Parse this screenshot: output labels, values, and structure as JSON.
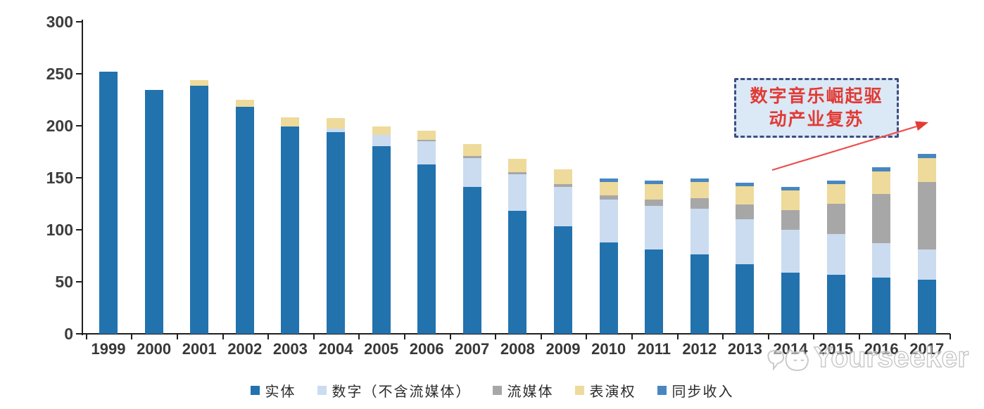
{
  "chart_data": {
    "type": "bar",
    "stacked": true,
    "grid": false,
    "legend_position": "bottom",
    "ylim": [
      0,
      300
    ],
    "y_ticks": [
      0,
      50,
      100,
      150,
      200,
      250,
      300
    ],
    "categories": [
      "1999",
      "2000",
      "2001",
      "2002",
      "2003",
      "2004",
      "2005",
      "2006",
      "2007",
      "2008",
      "2009",
      "2010",
      "2011",
      "2012",
      "2013",
      "2014",
      "2015",
      "2016",
      "2017"
    ],
    "series": [
      {
        "name": "实体",
        "color": "#2272ae",
        "values": [
          252,
          234,
          238,
          218,
          199,
          194,
          180,
          163,
          141,
          118,
          103,
          88,
          81,
          76,
          67,
          59,
          57,
          54,
          52
        ]
      },
      {
        "name": "数字（不含流媒体）",
        "color": "#cbdcf0",
        "values": [
          0,
          0,
          0,
          0,
          0,
          3,
          11,
          22,
          28,
          35,
          38,
          41,
          42,
          44,
          43,
          41,
          39,
          33,
          29
        ]
      },
      {
        "name": "流媒体",
        "color": "#a7a7a7",
        "values": [
          0,
          0,
          0,
          0,
          0,
          0,
          0,
          1,
          2,
          2,
          3,
          4,
          6,
          10,
          14,
          19,
          29,
          47,
          65
        ]
      },
      {
        "name": "表演权",
        "color": "#eeda9b",
        "values": [
          0,
          0,
          6,
          7,
          9,
          10,
          8,
          9,
          11,
          13,
          14,
          13,
          15,
          16,
          18,
          19,
          19,
          22,
          23
        ]
      },
      {
        "name": "同步收入",
        "color": "#4886c0",
        "values": [
          0,
          0,
          0,
          0,
          0,
          0,
          0,
          0,
          0,
          0,
          0,
          3,
          3,
          3,
          3,
          3,
          3,
          4,
          4
        ]
      }
    ]
  },
  "annotation": {
    "line1": "数字音乐崛起驱",
    "line2": "动产业复苏",
    "text_color": "#e23a34",
    "box_fill": "#dbe8f6",
    "border_color": "#3c4f82",
    "arrow_color": "#ee4c4c"
  },
  "watermark": {
    "text": "Yourseeker"
  }
}
